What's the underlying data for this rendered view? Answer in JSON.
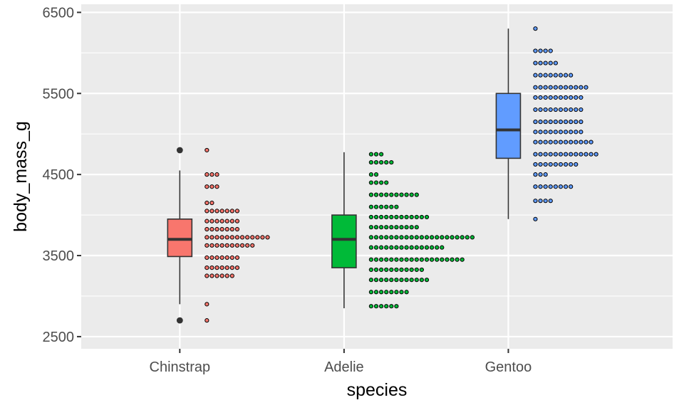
{
  "chart_data": {
    "type": "boxplot+dotplot",
    "xlabel": "species",
    "ylabel": "body_mass_g",
    "ylim": [
      2350,
      6600
    ],
    "y_ticks": [
      2500,
      3500,
      4500,
      5500,
      6500
    ],
    "y_tick_labels": [
      "2500",
      "3500",
      "4500",
      "5500",
      "6500"
    ],
    "grid": true,
    "legend": "none",
    "categories": [
      "Chinstrap",
      "Adelie",
      "Gentoo"
    ],
    "colors": {
      "panel": "#ebebeb",
      "grid": "#ffffff",
      "Chinstrap": "#f8766d",
      "Adelie": "#00ba38",
      "Gentoo": "#619cff"
    },
    "boxes": [
      {
        "species": "Chinstrap",
        "whisker_low": 2900,
        "q1": 3488,
        "median": 3700,
        "q3": 3950,
        "whisker_high": 4550,
        "outliers": [
          4800,
          2700
        ]
      },
      {
        "species": "Adelie",
        "whisker_low": 2850,
        "q1": 3350,
        "median": 3700,
        "q3": 4000,
        "whisker_high": 4775,
        "outliers": []
      },
      {
        "species": "Gentoo",
        "whisker_low": 3950,
        "q1": 4700,
        "median": 5050,
        "q3": 5500,
        "whisker_high": 6300,
        "outliers": []
      }
    ],
    "dot_bins": [
      {
        "species": "Chinstrap",
        "bins": [
          {
            "y": 2700,
            "count": 1
          },
          {
            "y": 2900,
            "count": 1
          },
          {
            "y": 3250,
            "count": 6
          },
          {
            "y": 3350,
            "count": 7
          },
          {
            "y": 3475,
            "count": 7
          },
          {
            "y": 3625,
            "count": 10
          },
          {
            "y": 3725,
            "count": 13
          },
          {
            "y": 3825,
            "count": 7
          },
          {
            "y": 3925,
            "count": 7
          },
          {
            "y": 4050,
            "count": 7
          },
          {
            "y": 4150,
            "count": 2
          },
          {
            "y": 4350,
            "count": 3
          },
          {
            "y": 4500,
            "count": 3
          },
          {
            "y": 4800,
            "count": 1
          }
        ]
      },
      {
        "species": "Adelie",
        "bins": [
          {
            "y": 2875,
            "count": 6
          },
          {
            "y": 3050,
            "count": 8
          },
          {
            "y": 3200,
            "count": 12
          },
          {
            "y": 3325,
            "count": 11
          },
          {
            "y": 3450,
            "count": 19
          },
          {
            "y": 3600,
            "count": 15
          },
          {
            "y": 3725,
            "count": 21
          },
          {
            "y": 3850,
            "count": 10
          },
          {
            "y": 3975,
            "count": 12
          },
          {
            "y": 4100,
            "count": 6
          },
          {
            "y": 4250,
            "count": 10
          },
          {
            "y": 4400,
            "count": 4
          },
          {
            "y": 4500,
            "count": 2
          },
          {
            "y": 4650,
            "count": 5
          },
          {
            "y": 4750,
            "count": 3
          }
        ]
      },
      {
        "species": "Gentoo",
        "bins": [
          {
            "y": 3950,
            "count": 1
          },
          {
            "y": 4175,
            "count": 4
          },
          {
            "y": 4350,
            "count": 8
          },
          {
            "y": 4500,
            "count": 3
          },
          {
            "y": 4625,
            "count": 9
          },
          {
            "y": 4750,
            "count": 13
          },
          {
            "y": 4900,
            "count": 12
          },
          {
            "y": 5025,
            "count": 10
          },
          {
            "y": 5150,
            "count": 10
          },
          {
            "y": 5300,
            "count": 10
          },
          {
            "y": 5450,
            "count": 10
          },
          {
            "y": 5575,
            "count": 11
          },
          {
            "y": 5725,
            "count": 8
          },
          {
            "y": 5875,
            "count": 5
          },
          {
            "y": 6025,
            "count": 4
          },
          {
            "y": 6300,
            "count": 1
          }
        ]
      }
    ]
  }
}
